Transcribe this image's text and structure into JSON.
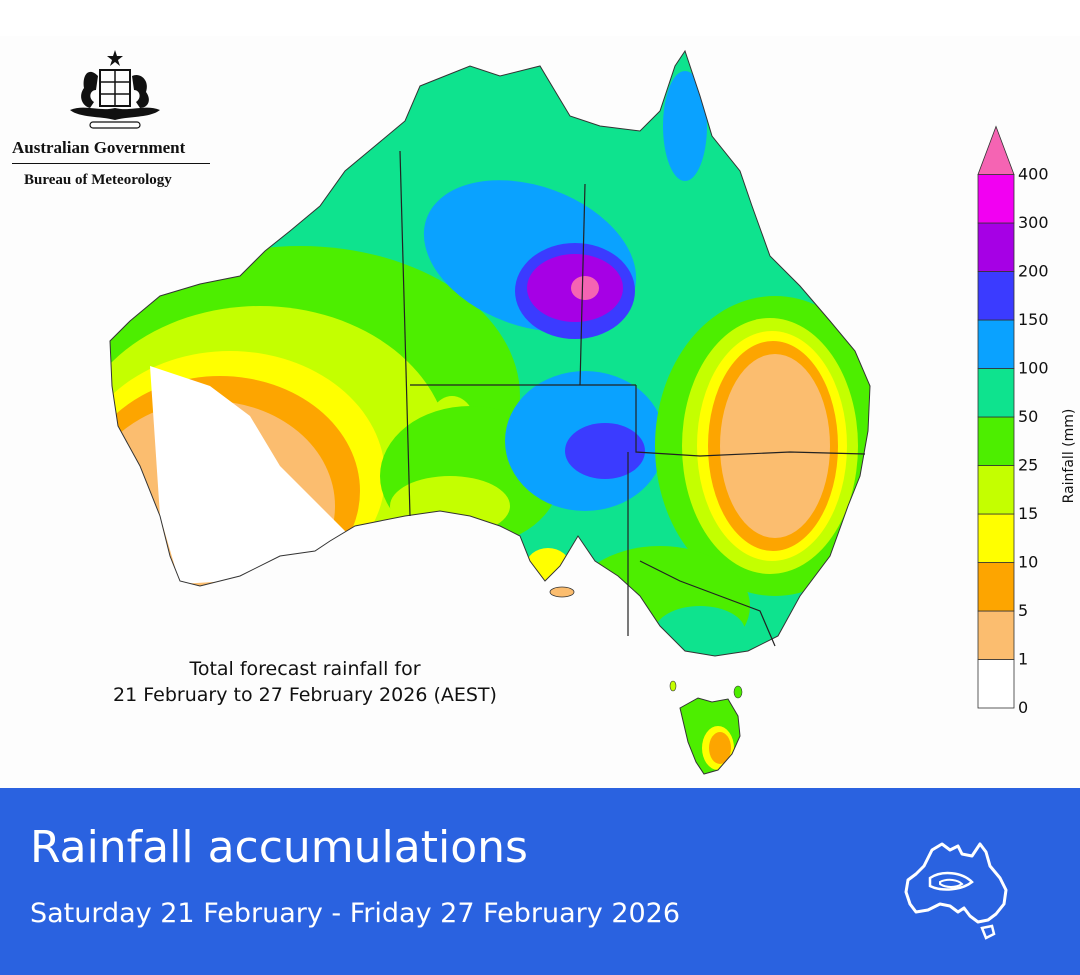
{
  "header": {
    "government": "Australian Government",
    "bureau": "Bureau of Meteorology"
  },
  "map": {
    "caption_line1": "Total forecast rainfall for",
    "caption_line2": "21 February to 27 February 2026 (AEST)"
  },
  "legend": {
    "title": "Rainfall (mm)",
    "levels": [
      {
        "label": "0",
        "color": "#ffffff"
      },
      {
        "label": "1",
        "color": "#fbbd6f"
      },
      {
        "label": "5",
        "color": "#fda500"
      },
      {
        "label": "10",
        "color": "#ffff00"
      },
      {
        "label": "15",
        "color": "#c4ff00"
      },
      {
        "label": "25",
        "color": "#4dee00"
      },
      {
        "label": "50",
        "color": "#0ee38e"
      },
      {
        "label": "100",
        "color": "#0aa2ff"
      },
      {
        "label": "150",
        "color": "#3b3bff"
      },
      {
        "label": "200",
        "color": "#a600e5"
      },
      {
        "label": "300",
        "color": "#f200f2"
      },
      {
        "label": "400",
        "color": "#f564b3"
      }
    ]
  },
  "footer": {
    "title": "Rainfall accumulations",
    "subtitle": "Saturday 21 February - Friday 27 February 2026",
    "icon": "australia-rainfall-icon",
    "background": "#2a62e0"
  }
}
